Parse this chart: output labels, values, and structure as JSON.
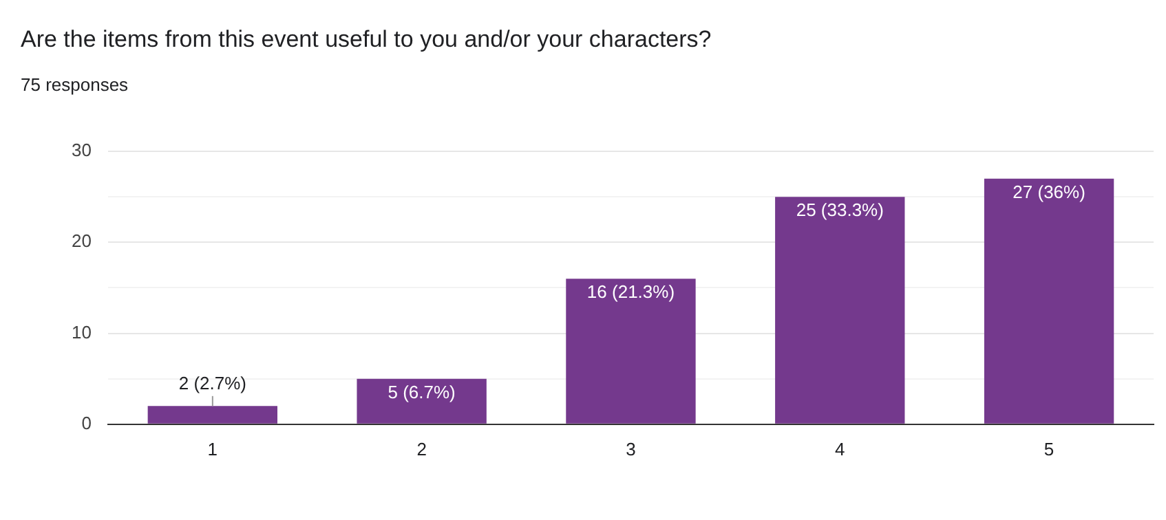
{
  "chart_data": {
    "type": "bar",
    "title": "Are the items from this event useful to you and/or your characters?",
    "subtitle": "75 responses",
    "categories": [
      "1",
      "2",
      "3",
      "4",
      "5"
    ],
    "values": [
      2,
      5,
      16,
      25,
      27
    ],
    "value_labels": [
      "2 (2.7%)",
      "5 (6.7%)",
      "16 (21.3%)",
      "25 (33.3%)",
      "27 (36%)"
    ],
    "color": "#74398d",
    "ylim": [
      0,
      30
    ],
    "yticks": [
      0,
      {
        "value": 5,
        "label": null
      },
      10,
      {
        "value": 15,
        "label": null
      },
      20,
      {
        "value": 25,
        "label": null
      },
      30
    ],
    "grid": true
  }
}
